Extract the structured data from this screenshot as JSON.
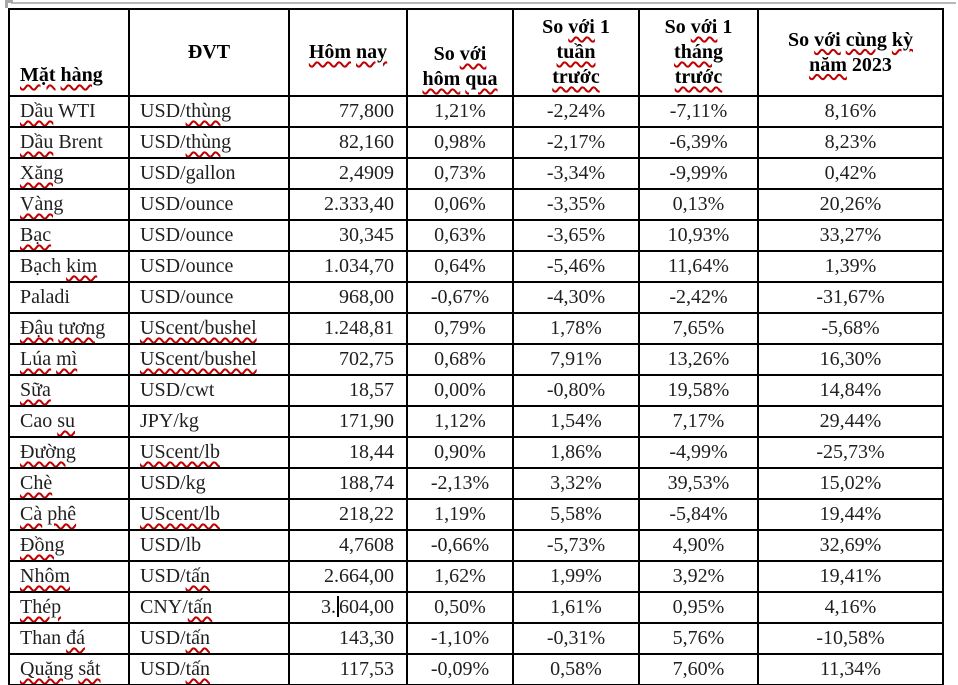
{
  "document": {
    "background": "#ffffff",
    "text_color": "#1f1f1f",
    "border_color": "#000000",
    "squiggle_color": "#c00000",
    "top_line_color": "#b9b9b9"
  },
  "table": {
    "columns": [
      {
        "key": "commodity",
        "label": "Mặt hàng",
        "segments": [
          [
            "Mặt",
            1
          ],
          [
            " ",
            0
          ],
          [
            "hàng",
            1
          ]
        ]
      },
      {
        "key": "unit",
        "label": "ĐVT",
        "segments": [
          [
            "ĐVT",
            0
          ]
        ]
      },
      {
        "key": "today",
        "label": "Hôm nay",
        "segments": [
          [
            "Hôm",
            1
          ],
          [
            " ",
            0
          ],
          [
            "nay",
            1
          ]
        ]
      },
      {
        "key": "vs_yesterday",
        "label": "So với hôm qua",
        "segments": [
          [
            "So ",
            0
          ],
          [
            "với",
            1
          ],
          [
            "\n",
            0
          ],
          [
            "hôm",
            1
          ],
          [
            " ",
            0
          ],
          [
            "qua",
            1
          ]
        ]
      },
      {
        "key": "vs_week",
        "label": "So với 1 tuần trước",
        "segments": [
          [
            "So ",
            0
          ],
          [
            "với",
            1
          ],
          [
            " 1",
            0
          ],
          [
            "\n",
            0
          ],
          [
            "tuần",
            1
          ],
          [
            "\n",
            0
          ],
          [
            "trước",
            1
          ]
        ]
      },
      {
        "key": "vs_month",
        "label": "So với 1 tháng trước",
        "segments": [
          [
            "So ",
            0
          ],
          [
            "với",
            1
          ],
          [
            " 1",
            0
          ],
          [
            "\n",
            0
          ],
          [
            "tháng",
            1
          ],
          [
            "\n",
            0
          ],
          [
            "trước",
            1
          ]
        ]
      },
      {
        "key": "vs_2023",
        "label": "So với cùng kỳ năm 2023",
        "segments": [
          [
            "So ",
            0
          ],
          [
            "với",
            1
          ],
          [
            " ",
            0
          ],
          [
            "cùng",
            1
          ],
          [
            " ",
            0
          ],
          [
            "kỳ",
            1
          ],
          [
            "\n",
            0
          ],
          [
            "năm",
            1
          ],
          [
            " 2023",
            0
          ]
        ]
      }
    ],
    "rows": [
      {
        "commodity": [
          [
            "Dầu",
            1
          ],
          [
            " WTI",
            0
          ]
        ],
        "unit": [
          [
            "USD/",
            0
          ],
          [
            "thùng",
            1
          ]
        ],
        "today": "77,800",
        "vs_yesterday": "1,21%",
        "vs_week": "-2,24%",
        "vs_month": "-7,11%",
        "vs_2023": "8,16%"
      },
      {
        "commodity": [
          [
            "Dầu",
            1
          ],
          [
            " Brent",
            0
          ]
        ],
        "unit": [
          [
            "USD/",
            0
          ],
          [
            "thùng",
            1
          ]
        ],
        "today": "82,160",
        "vs_yesterday": "0,98%",
        "vs_week": "-2,17%",
        "vs_month": "-6,39%",
        "vs_2023": "8,23%"
      },
      {
        "commodity": [
          [
            "Xăng",
            1
          ]
        ],
        "unit": [
          [
            "USD/gallon",
            0
          ]
        ],
        "today": "2,4909",
        "vs_yesterday": "0,73%",
        "vs_week": "-3,34%",
        "vs_month": "-9,99%",
        "vs_2023": "0,42%"
      },
      {
        "commodity": [
          [
            "Vàng",
            1
          ]
        ],
        "unit": [
          [
            "USD/ounce",
            0
          ]
        ],
        "today": "2.333,40",
        "vs_yesterday": "0,06%",
        "vs_week": "-3,35%",
        "vs_month": "0,13%",
        "vs_2023": "20,26%"
      },
      {
        "commodity": [
          [
            "Bạc",
            1
          ]
        ],
        "unit": [
          [
            "USD/ounce",
            0
          ]
        ],
        "today": "30,345",
        "vs_yesterday": "0,63%",
        "vs_week": "-3,65%",
        "vs_month": "10,93%",
        "vs_2023": "33,27%"
      },
      {
        "commodity": [
          [
            "Bạch ",
            0
          ],
          [
            "kim",
            1
          ]
        ],
        "unit": [
          [
            "USD/ounce",
            0
          ]
        ],
        "today": "1.034,70",
        "vs_yesterday": "0,64%",
        "vs_week": "-5,46%",
        "vs_month": "11,64%",
        "vs_2023": "1,39%"
      },
      {
        "commodity": [
          [
            "Paladi",
            0
          ]
        ],
        "unit": [
          [
            "USD/ounce",
            0
          ]
        ],
        "today": "968,00",
        "vs_yesterday": "-0,67%",
        "vs_week": "-4,30%",
        "vs_month": "-2,42%",
        "vs_2023": "-31,67%"
      },
      {
        "commodity": [
          [
            "Đậu",
            1
          ],
          [
            " ",
            0
          ],
          [
            "tương",
            1
          ]
        ],
        "unit": [
          [
            "UScent/bushel",
            1
          ]
        ],
        "today": "1.248,81",
        "vs_yesterday": "0,79%",
        "vs_week": "1,78%",
        "vs_month": "7,65%",
        "vs_2023": "-5,68%"
      },
      {
        "commodity": [
          [
            "Lúa",
            1
          ],
          [
            " ",
            0
          ],
          [
            "mì",
            1
          ]
        ],
        "unit": [
          [
            "UScent/bushel",
            1
          ]
        ],
        "today": "702,75",
        "vs_yesterday": "0,68%",
        "vs_week": "7,91%",
        "vs_month": "13,26%",
        "vs_2023": "16,30%"
      },
      {
        "commodity": [
          [
            "Sữa",
            1
          ]
        ],
        "unit": [
          [
            "USD/cwt",
            0
          ]
        ],
        "today": "18,57",
        "vs_yesterday": "0,00%",
        "vs_week": "-0,80%",
        "vs_month": "19,58%",
        "vs_2023": "14,84%"
      },
      {
        "commodity": [
          [
            "Cao ",
            0
          ],
          [
            "su",
            1
          ]
        ],
        "unit": [
          [
            "JPY/kg",
            0
          ]
        ],
        "today": "171,90",
        "vs_yesterday": "1,12%",
        "vs_week": "1,54%",
        "vs_month": "7,17%",
        "vs_2023": "29,44%"
      },
      {
        "commodity": [
          [
            "Đường",
            1
          ]
        ],
        "unit": [
          [
            "UScent/lb",
            1
          ]
        ],
        "today": "18,44",
        "vs_yesterday": "0,90%",
        "vs_week": "1,86%",
        "vs_month": "-4,99%",
        "vs_2023": "-25,73%"
      },
      {
        "commodity": [
          [
            "Chè",
            1
          ]
        ],
        "unit": [
          [
            "USD/kg",
            0
          ]
        ],
        "today": "188,74",
        "vs_yesterday": "-2,13%",
        "vs_week": "3,32%",
        "vs_month": "39,53%",
        "vs_2023": "15,02%"
      },
      {
        "commodity": [
          [
            "Cà",
            1
          ],
          [
            " ",
            0
          ],
          [
            "phê",
            1
          ]
        ],
        "unit": [
          [
            "UScent/lb",
            1
          ]
        ],
        "today": "218,22",
        "vs_yesterday": "1,19%",
        "vs_week": "5,58%",
        "vs_month": "-5,84%",
        "vs_2023": "19,44%"
      },
      {
        "commodity": [
          [
            "Đồng",
            1
          ]
        ],
        "unit": [
          [
            "USD/lb",
            0
          ]
        ],
        "today": "4,7608",
        "vs_yesterday": "-0,66%",
        "vs_week": "-5,73%",
        "vs_month": "4,90%",
        "vs_2023": "32,69%"
      },
      {
        "commodity": [
          [
            "Nhôm",
            1
          ]
        ],
        "unit": [
          [
            "USD/",
            0
          ],
          [
            "tấn",
            1
          ]
        ],
        "today": "2.664,00",
        "vs_yesterday": "1,62%",
        "vs_week": "1,99%",
        "vs_month": "3,92%",
        "vs_2023": "19,41%"
      },
      {
        "commodity": [
          [
            "Thép",
            1
          ]
        ],
        "unit": [
          [
            "CNY/",
            0
          ],
          [
            "tấn",
            1
          ]
        ],
        "today": "3.604,00",
        "vs_yesterday": "0,50%",
        "vs_week": "1,61%",
        "vs_month": "0,95%",
        "vs_2023": "4,16%"
      },
      {
        "commodity": [
          [
            "Than ",
            0
          ],
          [
            "đá",
            1
          ]
        ],
        "unit": [
          [
            "USD/",
            0
          ],
          [
            "tấn",
            1
          ]
        ],
        "today": "143,30",
        "vs_yesterday": "-1,10%",
        "vs_week": "-0,31%",
        "vs_month": "5,76%",
        "vs_2023": "-10,58%"
      },
      {
        "commodity": [
          [
            "Quặng",
            1
          ],
          [
            " ",
            0
          ],
          [
            "sắt",
            1
          ]
        ],
        "unit": [
          [
            "USD/",
            0
          ],
          [
            "tấn",
            1
          ]
        ],
        "today": "117,53",
        "vs_yesterday": "-0,09%",
        "vs_week": "0,58%",
        "vs_month": "7,60%",
        "vs_2023": "11,34%"
      }
    ],
    "caret": {
      "row_index": 16,
      "column": "today",
      "after_text": "3."
    }
  }
}
